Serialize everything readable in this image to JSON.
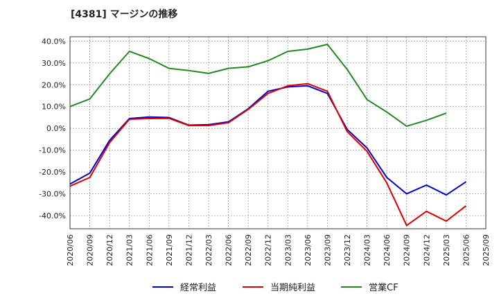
{
  "chart_data": {
    "type": "line",
    "title": "[4381]  マージンの推移",
    "xlabel": "",
    "ylabel": "",
    "ylim": [
      -46,
      42
    ],
    "y_ticks": [
      40,
      30,
      20,
      10,
      0,
      -10,
      -20,
      -30,
      -40
    ],
    "y_tick_labels": [
      "40.0%",
      "30.0%",
      "20.0%",
      "10.0%",
      "0.0%",
      "-10.0%",
      "-20.0%",
      "-30.0%",
      "-40.0%"
    ],
    "categories": [
      "2020/06",
      "2020/09",
      "2020/12",
      "2021/03",
      "2021/06",
      "2021/09",
      "2021/12",
      "2022/03",
      "2022/06",
      "2022/09",
      "2022/12",
      "2023/03",
      "2023/06",
      "2023/09",
      "2023/12",
      "2024/03",
      "2024/06",
      "2024/09",
      "2024/12",
      "2025/03",
      "2025/06",
      "2025/09"
    ],
    "grid": true,
    "legend_position": "bottom",
    "series": [
      {
        "name": "経常利益",
        "color": "#0000cc",
        "values": [
          -25.5,
          -20.5,
          -5.5,
          4.5,
          5.2,
          5.0,
          1.5,
          1.7,
          3.0,
          9.0,
          17.0,
          19.0,
          19.5,
          16.0,
          -0.5,
          -9.0,
          -22.5,
          -30.0,
          -26.0,
          -30.5,
          -24.5,
          null
        ]
      },
      {
        "name": "当期純利益",
        "color": "#dd0000",
        "values": [
          -26.5,
          -22.5,
          -6.5,
          4.2,
          4.5,
          4.6,
          1.3,
          1.3,
          2.6,
          8.7,
          16.0,
          19.5,
          20.5,
          17.0,
          -1.5,
          -10.5,
          -25.0,
          -44.5,
          -38.0,
          -42.5,
          -35.5,
          null
        ]
      },
      {
        "name": "営業CF",
        "color": "#228822",
        "values": [
          10.0,
          13.5,
          25.0,
          35.3,
          32.0,
          27.5,
          26.5,
          25.2,
          27.5,
          28.2,
          31.0,
          35.3,
          36.3,
          38.5,
          27.0,
          13.2,
          7.5,
          1.0,
          3.7,
          7.0,
          null,
          null
        ]
      }
    ]
  }
}
